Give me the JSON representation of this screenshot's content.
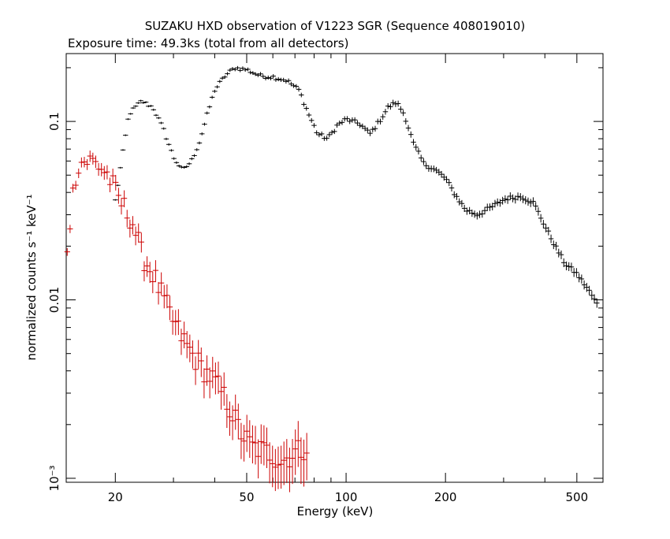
{
  "chart_data": {
    "type": "scatter",
    "title": "SUZAKU HXD observation of V1223 SGR (Sequence 408019010)",
    "subtitle": "Exposure time: 49.3ks (total from all detectors)",
    "xlabel": "Energy (keV)",
    "ylabel": "normalized counts s⁻¹ keV⁻¹",
    "x_scale": "log",
    "y_scale": "log",
    "xlim": [
      14.2,
      600
    ],
    "ylim": [
      0.00095,
      0.24
    ],
    "x_ticks": [
      20,
      50,
      100,
      200,
      500
    ],
    "y_ticks": [
      {
        "value": 0.1,
        "label": "0.1"
      },
      {
        "value": 0.01,
        "label": "0.01"
      },
      {
        "value": 0.001,
        "label": "10⁻³"
      }
    ],
    "grid": false,
    "series": [
      {
        "color": "#000000",
        "anchors": [
          [
            20,
            0.036
          ],
          [
            22,
            0.11
          ],
          [
            24,
            0.13
          ],
          [
            26,
            0.12
          ],
          [
            28,
            0.09
          ],
          [
            30,
            0.063
          ],
          [
            32,
            0.053
          ],
          [
            34,
            0.06
          ],
          [
            36,
            0.077
          ],
          [
            38,
            0.11
          ],
          [
            40,
            0.15
          ],
          [
            43,
            0.18
          ],
          [
            46,
            0.2
          ],
          [
            50,
            0.195
          ],
          [
            55,
            0.18
          ],
          [
            60,
            0.178
          ],
          [
            66,
            0.17
          ],
          [
            72,
            0.15
          ],
          [
            77,
            0.11
          ],
          [
            82,
            0.085
          ],
          [
            88,
            0.08
          ],
          [
            94,
            0.095
          ],
          [
            100,
            0.103
          ],
          [
            110,
            0.097
          ],
          [
            118,
            0.085
          ],
          [
            126,
            0.1
          ],
          [
            134,
            0.12
          ],
          [
            142,
            0.128
          ],
          [
            150,
            0.11
          ],
          [
            160,
            0.075
          ],
          [
            172,
            0.058
          ],
          [
            185,
            0.054
          ],
          [
            200,
            0.048
          ],
          [
            212,
            0.04
          ],
          [
            230,
            0.032
          ],
          [
            250,
            0.03
          ],
          [
            275,
            0.033
          ],
          [
            305,
            0.037
          ],
          [
            340,
            0.038
          ],
          [
            370,
            0.035
          ],
          [
            400,
            0.026
          ],
          [
            430,
            0.02
          ],
          [
            460,
            0.016
          ],
          [
            500,
            0.014
          ],
          [
            540,
            0.0115
          ],
          [
            575,
            0.0095
          ]
        ],
        "points": 190,
        "xrange": [
          20,
          575
        ]
      },
      {
        "color": "#cc0000",
        "anchors": [
          [
            14.3,
            0.02
          ],
          [
            14.8,
            0.036
          ],
          [
            15.3,
            0.057
          ],
          [
            16,
            0.06
          ],
          [
            17,
            0.06
          ],
          [
            18,
            0.056
          ],
          [
            19,
            0.05
          ],
          [
            20,
            0.04
          ],
          [
            21,
            0.034
          ],
          [
            22.5,
            0.028
          ],
          [
            24,
            0.018
          ],
          [
            26,
            0.014
          ],
          [
            28,
            0.01
          ],
          [
            30,
            0.0075
          ],
          [
            33,
            0.0055
          ],
          [
            36,
            0.0043
          ],
          [
            40,
            0.0035
          ],
          [
            44,
            0.0026
          ],
          [
            48,
            0.0018
          ],
          [
            52,
            0.0015
          ],
          [
            58,
            0.0014
          ],
          [
            64,
            0.00125
          ],
          [
            70,
            0.0014
          ],
          [
            76,
            0.0015
          ]
        ],
        "points": 85,
        "xrange": [
          14.3,
          76
        ]
      }
    ]
  }
}
